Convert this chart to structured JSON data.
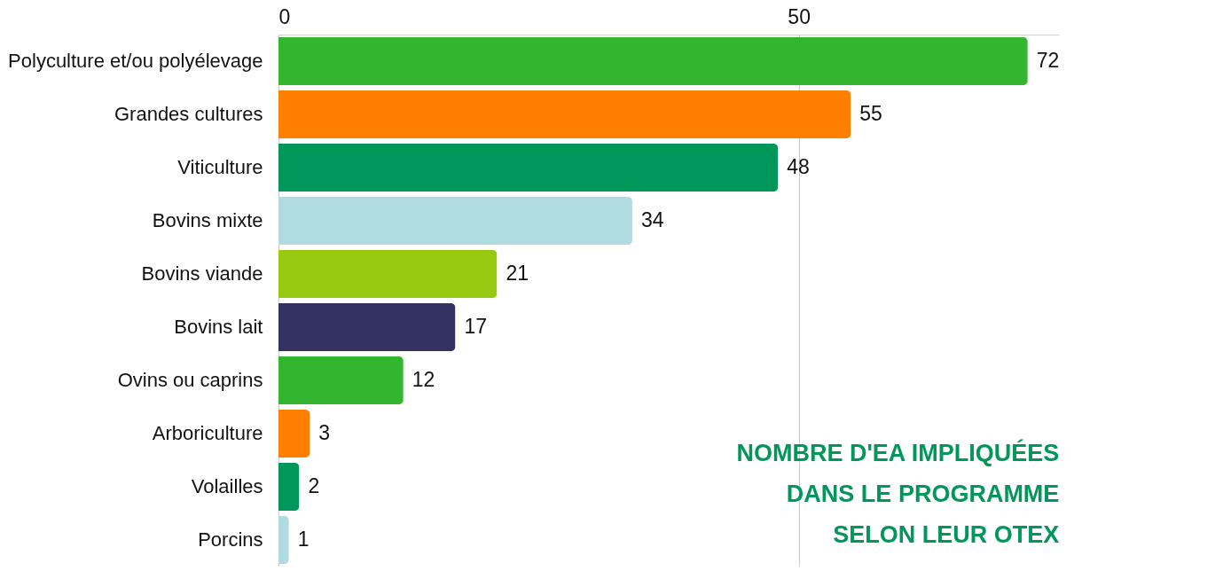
{
  "chart_data": {
    "type": "bar",
    "orientation": "horizontal",
    "title": "NOMBRE D'EA IMPLIQUÉES DANS LE PROGRAMME SELON LEUR OTEX",
    "categories": [
      "Polyculture et/ou polyélevage",
      "Grandes cultures",
      "Viticulture",
      "Bovins mixte",
      "Bovins viande",
      "Bovins lait",
      "Ovins ou caprins",
      "Arboriculture",
      "Volailles",
      "Porcins"
    ],
    "values": [
      72,
      55,
      48,
      34,
      21,
      17,
      12,
      3,
      2,
      1
    ],
    "colors": [
      "#33b52f",
      "#ff8000",
      "#02975a",
      "#b0dbe1",
      "#96c90f",
      "#343262",
      "#33b52f",
      "#ff8000",
      "#02975a",
      "#b0dbe1"
    ],
    "xlim": [
      0,
      75
    ],
    "xticks": [
      0,
      50
    ],
    "grid": "x",
    "data_labels": true
  }
}
